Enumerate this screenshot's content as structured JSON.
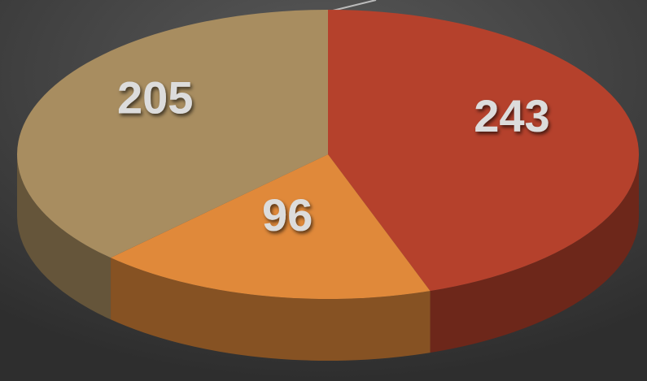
{
  "chart_data": {
    "type": "pie",
    "values": [
      243,
      96,
      205
    ],
    "colors": [
      "#b5412c",
      "#e0893a",
      "#a88d60"
    ]
  }
}
